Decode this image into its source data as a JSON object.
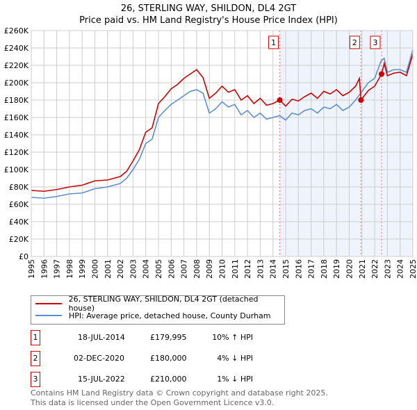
{
  "chart_data": {
    "type": "line",
    "title": "26, STERLING WAY, SHILDON, DL4 2GT",
    "subtitle": "Price paid vs. HM Land Registry's House Price Index (HPI)",
    "xlim": [
      1995,
      2025
    ],
    "ylim": [
      0,
      260000
    ],
    "x_ticks": [
      "1995",
      "1996",
      "1997",
      "1998",
      "1999",
      "2000",
      "2001",
      "2002",
      "2003",
      "2004",
      "2005",
      "2006",
      "2007",
      "2008",
      "2009",
      "2010",
      "2011",
      "2012",
      "2013",
      "2014",
      "2015",
      "2016",
      "2017",
      "2018",
      "2019",
      "2020",
      "2021",
      "2022",
      "2023",
      "2024",
      "2025"
    ],
    "y_ticks": [
      "£0",
      "£20K",
      "£40K",
      "£60K",
      "£80K",
      "£100K",
      "£120K",
      "£140K",
      "£160K",
      "£180K",
      "£200K",
      "£220K",
      "£240K",
      "£260K"
    ],
    "grid": true,
    "series": [
      {
        "name": "26, STERLING WAY, SHILDON, DL4 2GT (detached house)",
        "color": "#cc0000",
        "x": [
          1995,
          1996,
          1997,
          1998,
          1999,
          2000,
          2001,
          2002,
          2002.5,
          2003,
          2003.5,
          2004,
          2004.5,
          2005,
          2005.5,
          2006,
          2006.5,
          2007,
          2007.5,
          2008,
          2008.5,
          2009,
          2009.5,
          2010,
          2010.5,
          2011,
          2011.5,
          2012,
          2012.5,
          2013,
          2013.5,
          2014,
          2014.54,
          2015,
          2015.5,
          2016,
          2016.5,
          2017,
          2017.5,
          2018,
          2018.5,
          2019,
          2019.5,
          2020,
          2020.5,
          2020.8,
          2020.92,
          2021.5,
          2022,
          2022.54,
          2022.75,
          2023,
          2023.5,
          2024,
          2024.5,
          2025
        ],
        "y": [
          76,
          75,
          77,
          80,
          82,
          87,
          88,
          92,
          98,
          110,
          123,
          143,
          148,
          176,
          184,
          193,
          198,
          205,
          210,
          215,
          206,
          182,
          188,
          196,
          189,
          192,
          180,
          185,
          176,
          182,
          174,
          176,
          180,
          173,
          181,
          179,
          184,
          188,
          182,
          190,
          187,
          192,
          185,
          189,
          196,
          205,
          180,
          191,
          196,
          210,
          222,
          208,
          211,
          212,
          208,
          233
        ]
      },
      {
        "name": "HPI: Average price, detached house, County Durham",
        "color": "#5b8fd0",
        "x": [
          1995,
          1996,
          1997,
          1998,
          1999,
          2000,
          2001,
          2002,
          2002.5,
          2003,
          2003.5,
          2004,
          2004.5,
          2005,
          2005.5,
          2006,
          2006.5,
          2007,
          2007.5,
          2008,
          2008.5,
          2009,
          2009.5,
          2010,
          2010.5,
          2011,
          2011.5,
          2012,
          2012.5,
          2013,
          2013.5,
          2014,
          2014.54,
          2015,
          2015.5,
          2016,
          2016.5,
          2017,
          2017.5,
          2018,
          2018.5,
          2019,
          2019.5,
          2020,
          2020.5,
          2021,
          2021.5,
          2022,
          2022.5,
          2022.75,
          2023,
          2023.5,
          2024,
          2024.5,
          2025
        ],
        "y": [
          68,
          67,
          69,
          72,
          73,
          78,
          80,
          84,
          90,
          100,
          112,
          130,
          135,
          160,
          168,
          175,
          180,
          185,
          190,
          192,
          188,
          165,
          170,
          178,
          172,
          175,
          163,
          168,
          160,
          165,
          158,
          160,
          162,
          157,
          165,
          163,
          168,
          170,
          165,
          172,
          170,
          175,
          168,
          172,
          180,
          190,
          200,
          205,
          225,
          228,
          212,
          215,
          215,
          212,
          238
        ]
      }
    ],
    "sales": [
      {
        "label": "1",
        "x": 2014.54,
        "y": 179995,
        "date": "18-JUL-2014",
        "price": "£179,995",
        "hpi": "10% ↑ HPI"
      },
      {
        "label": "2",
        "x": 2020.92,
        "y": 180000,
        "date": "02-DEC-2020",
        "price": "£180,000",
        "hpi": "4% ↓ HPI"
      },
      {
        "label": "3",
        "x": 2022.54,
        "y": 210000,
        "date": "15-JUL-2022",
        "price": "£210,000",
        "hpi": "1% ↓ HPI"
      }
    ],
    "legend_position": "below"
  },
  "footer": {
    "line1": "Contains HM Land Registry data © Crown copyright and database right 2025.",
    "line2": "This data is licensed under the Open Government Licence v3.0."
  }
}
